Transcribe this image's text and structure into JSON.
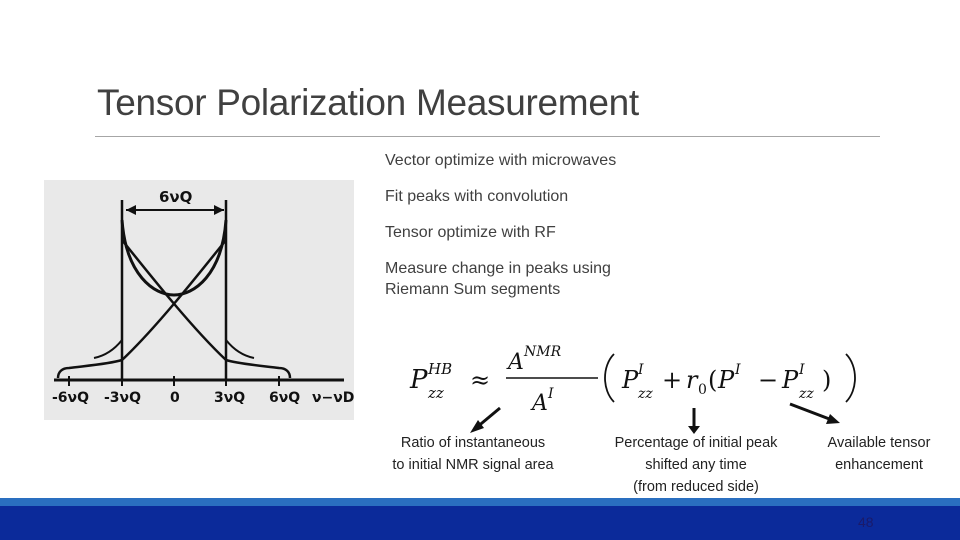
{
  "slide": {
    "title": "Tensor Polarization Measurement",
    "page_number": "48"
  },
  "bullets": [
    "Vector optimize with microwaves",
    "Fit peaks with convolution",
    "Tensor optimize with RF",
    "Measure change in peaks using",
    "Riemann Sum segments"
  ],
  "figure": {
    "top_label": "6νQ",
    "axis_labels": [
      "-6νQ",
      "-3νQ",
      "0",
      "3νQ",
      "6νQ",
      "ν−νD"
    ]
  },
  "annotations": {
    "left": [
      "Ratio of instantaneous",
      "to initial NMR signal area"
    ],
    "middle": [
      "Percentage of initial peak",
      "shifted any time",
      "(from reduced side)"
    ],
    "right": [
      "Available tensor",
      "enhancement"
    ]
  },
  "colors": {
    "title_text": "#404040",
    "footer_dark": "#0b2a9a",
    "footer_light": "#2a6fc0"
  }
}
